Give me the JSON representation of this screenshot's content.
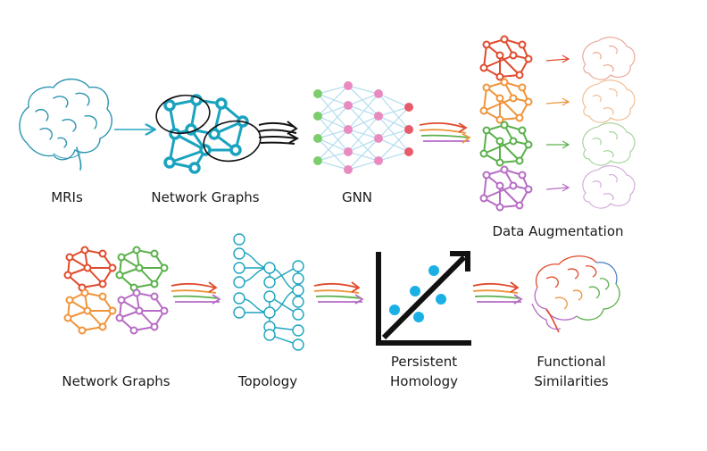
{
  "stages": [
    {
      "id": "mri",
      "label": "MRIs",
      "icon": "brain-outline-icon"
    },
    {
      "id": "graph1",
      "label": "Network Graphs",
      "icon": "network-graph-icon"
    },
    {
      "id": "gnn",
      "label": "GNN",
      "icon": "neural-network-icon"
    },
    {
      "id": "aug",
      "label": "Data Augmentation",
      "icon": "augmented-graphs-icon"
    },
    {
      "id": "graph2",
      "label": "Network Graphs",
      "icon": "colored-graphs-icon"
    },
    {
      "id": "topo",
      "label": "Topology",
      "icon": "tree-topology-icon"
    },
    {
      "id": "ph",
      "label_line1": "Persistent",
      "label_line2": "Homology",
      "icon": "scatter-plot-icon"
    },
    {
      "id": "fs",
      "label_line1": "Functional",
      "label_line2": "Similarities",
      "icon": "colored-brain-icon"
    }
  ],
  "colors": {
    "graph_teal": "#1aa3bf",
    "brain_outline": "#2c95b0",
    "red": "#e04a2c",
    "orange": "#f0943a",
    "green": "#5ab04a",
    "purple": "#b66cc4",
    "gnn_pink": "#e98bc0",
    "gnn_green": "#7ccd6b",
    "gnn_red": "#e85b6b",
    "gnn_line": "#b8dff0",
    "dots": "#1ab0e6",
    "black": "#111111"
  }
}
